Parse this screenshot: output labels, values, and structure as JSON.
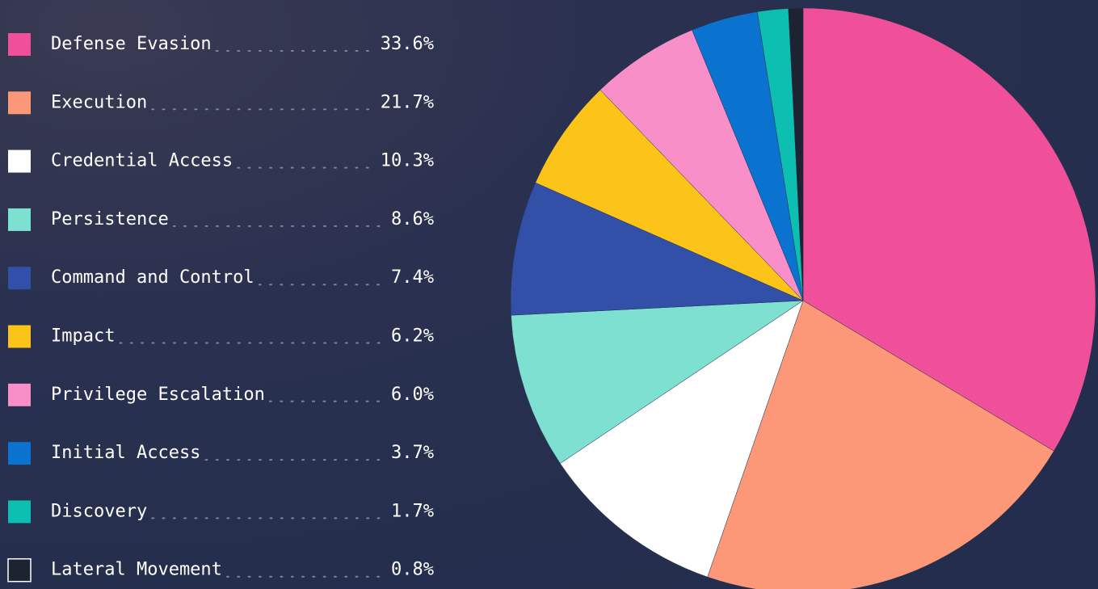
{
  "chart_data": {
    "type": "pie",
    "categories": [
      "Defense Evasion",
      "Execution",
      "Credential Access",
      "Persistence",
      "Command and Control",
      "Impact",
      "Privilege Escalation",
      "Initial Access",
      "Discovery",
      "Lateral Movement"
    ],
    "values": [
      33.6,
      21.7,
      10.3,
      8.6,
      7.4,
      6.2,
      6.0,
      3.7,
      1.7,
      0.8
    ],
    "value_labels": [
      "33.6%",
      "21.7%",
      "10.3%",
      "8.6%",
      "7.4%",
      "6.2%",
      "6.0%",
      "3.7%",
      "1.7%",
      "0.8%"
    ],
    "colors": [
      "#f0509a",
      "#fc9878",
      "#ffffff",
      "#7ee0d0",
      "#3350a8",
      "#fcc419",
      "#f98fc8",
      "#0a73d0",
      "#0dbfb0",
      "#1e2332"
    ],
    "legend": "left"
  }
}
